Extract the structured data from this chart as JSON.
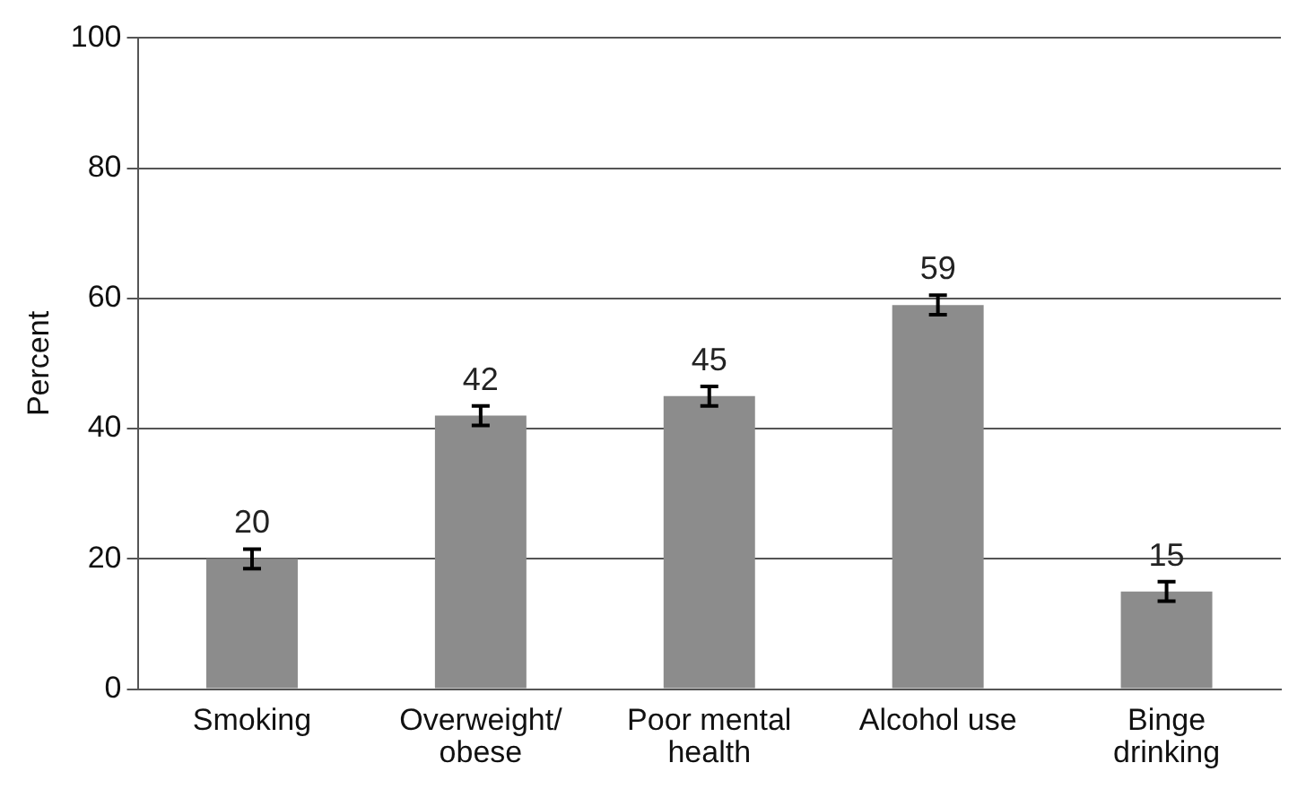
{
  "chart_data": {
    "type": "bar",
    "ylabel": "Percent",
    "categories": [
      "Smoking",
      "Overweight/ obese",
      "Poor mental health",
      "Alcohol use",
      "Binge drinking"
    ],
    "values": [
      20,
      42,
      45,
      59,
      15
    ],
    "errors": [
      1.5,
      1.5,
      1.5,
      1.5,
      1.5
    ],
    "color": "#8c8c8c",
    "ylim": [
      0,
      100
    ],
    "yticks": [
      0,
      20,
      40,
      60,
      80,
      100
    ],
    "grid": "y",
    "data_labels": true,
    "legend": false
  }
}
